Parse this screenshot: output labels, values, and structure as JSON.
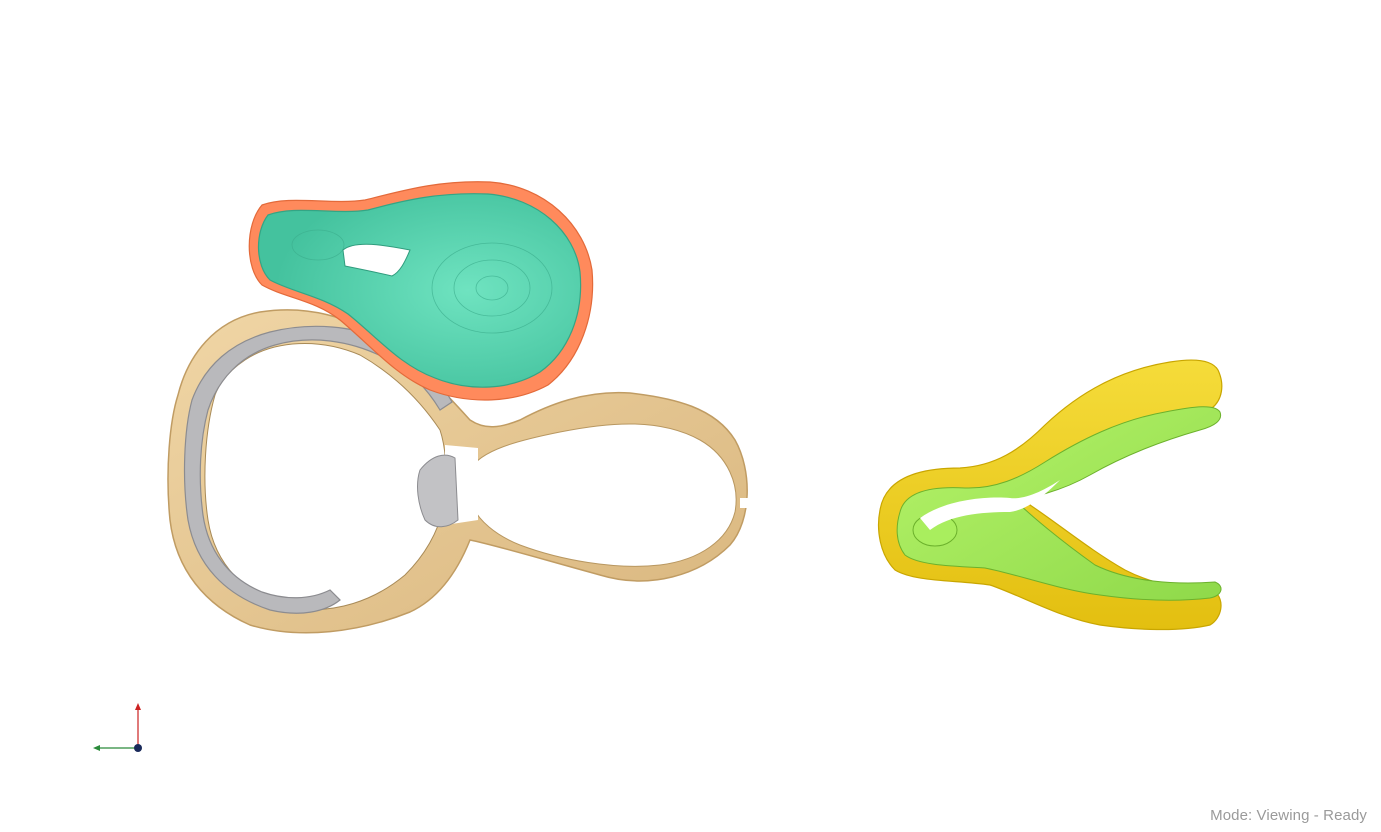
{
  "viewer": {
    "status": "Mode: Viewing - Ready"
  },
  "colors": {
    "background": "#ffffff",
    "bone": "#e9cc9a",
    "bone_shade": "#c9a870",
    "silver": "#b9b9bc",
    "silver_shade": "#8c8c90",
    "teal": "#5ed9b4",
    "teal_shade": "#3fb996",
    "coral": "#ff8a5c",
    "yellow": "#f2d22a",
    "yellow_shade": "#d4b100",
    "lime": "#a7ee5a",
    "lime_shade": "#7ec93a",
    "axis_y": "#cc2222",
    "axis_x": "#2a8a3a",
    "axis_z": "#1a2a5a",
    "status_text": "#9a9a9a"
  },
  "icons": {
    "orientation": "axes-orientation-icon"
  }
}
